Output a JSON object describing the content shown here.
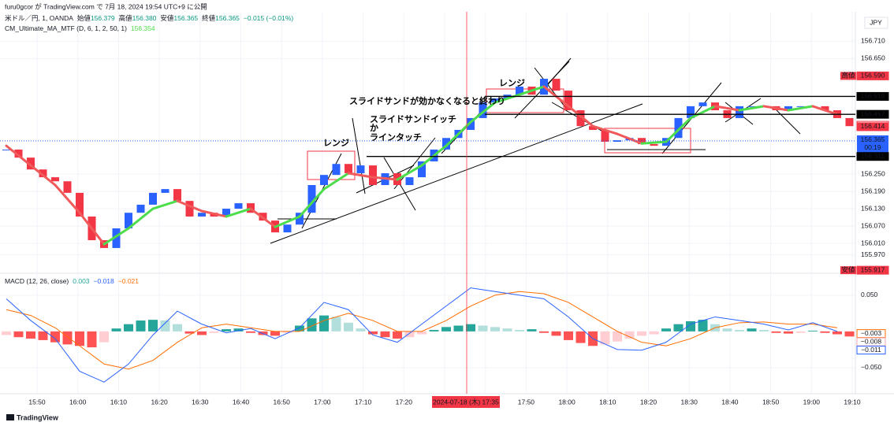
{
  "header": {
    "publisher": "furu0gcor が TradingView.com で 7月 18, 2024 19:54 UTC+9 に公開",
    "symbol": "米ドル／円, 1, OANDA",
    "open_label": "始値",
    "open": "156.379",
    "high_label": "高値",
    "high": "156.380",
    "low_label": "安値",
    "low": "156.365",
    "close_label": "終値",
    "close": "156.365",
    "change": "−0.015 (−0.01%)"
  },
  "indicator": {
    "name": "CM_Ultimate_MA_MTF (D, 6, 1, 2, 50, 1)",
    "value": "156.354"
  },
  "chart_data": [
    {
      "type": "candlestick",
      "currency": "JPY",
      "x_labels": [
        "15:50",
        "16:00",
        "16:10",
        "16:20",
        "16:30",
        "16:40",
        "16:50",
        "17:00",
        "17:10",
        "17:20",
        null,
        null,
        "17:50",
        "18:00",
        "18:10",
        "18:20",
        "18:30",
        "18:40",
        "18:50",
        "19:00",
        "19:10"
      ],
      "crosshair_label": "2024-07-18 (木)  17:35",
      "up_color": "#2962ff",
      "down_color": "#f23645",
      "closes": [
        156.335,
        156.307,
        156.266,
        156.239,
        156.225,
        156.185,
        156.103,
        156.021,
        155.994,
        156.062,
        156.116,
        156.144,
        156.185,
        156.198,
        156.157,
        156.103,
        156.116,
        156.103,
        156.13,
        156.149,
        156.116,
        156.089,
        156.048,
        156.075,
        156.116,
        156.212,
        156.247,
        156.285,
        156.253,
        156.28,
        156.212,
        156.253,
        156.212,
        156.239,
        156.294,
        156.335,
        156.375,
        156.403,
        156.444,
        156.498,
        156.512,
        156.525,
        156.553,
        156.525,
        156.58,
        156.539,
        156.471,
        156.416,
        156.403,
        156.362,
        156.367,
        156.375,
        156.354,
        156.348,
        156.375,
        156.444,
        156.485,
        156.498,
        156.471,
        156.444,
        156.485,
        156.485,
        156.485,
        156.471,
        156.485,
        156.485,
        156.485,
        156.471,
        156.444,
        156.416
      ],
      "ma": {
        "rise_color": "#4cdd4c",
        "fall_color": "#f05a5a",
        "values": [
          156.348,
          156.28,
          156.212,
          156.116,
          156.007,
          156.062,
          156.13,
          156.157,
          156.122,
          156.103,
          156.13,
          156.067,
          156.103,
          156.198,
          156.253,
          156.239,
          156.231,
          156.28,
          156.348,
          156.43,
          156.498,
          156.525,
          156.553,
          156.485,
          156.416,
          156.389,
          156.356,
          156.362,
          156.444,
          156.485,
          156.471,
          156.485,
          156.471,
          156.485,
          156.457
        ]
      },
      "ylim": [
        155.912,
        156.812
      ],
      "yticks": [
        {
          "value": 156.71,
          "label": "156.710"
        },
        {
          "value": 156.65,
          "label": "156.650"
        },
        {
          "value": 156.25,
          "label": "156.250"
        },
        {
          "value": 156.19,
          "label": "156.190"
        },
        {
          "value": 156.13,
          "label": "156.130"
        },
        {
          "value": 156.07,
          "label": "156.070"
        },
        {
          "value": 156.01,
          "label": "156.010"
        },
        {
          "value": 155.97,
          "label": "155.970"
        }
      ],
      "grid": true,
      "last_price": {
        "value": 156.365,
        "label": "156.365",
        "countdown": "00:19",
        "color": "#2962ff"
      },
      "price_labels": [
        {
          "tag": "高値",
          "value": 156.59,
          "label": "156.590",
          "color": "#f23645",
          "style": "fill"
        },
        {
          "value": 156.519,
          "label": "156.519",
          "color": "#000000",
          "style": "fill",
          "line": true
        },
        {
          "value": 156.457,
          "label": "156.457",
          "color": "#000000",
          "style": "fill",
          "line": true
        },
        {
          "value": 156.419,
          "label": "156.419",
          "color": "#f23645",
          "style": "outline"
        },
        {
          "value": 156.414,
          "label": "156.414",
          "color": "#f23645",
          "style": "fill"
        },
        {
          "value": 156.311,
          "label": "156.311",
          "color": "#000000",
          "style": "fill",
          "line": true
        },
        {
          "tag": "安値",
          "value": 155.917,
          "label": "155.917",
          "color": "#f23645",
          "style": "fill"
        }
      ],
      "annotations": [
        "レンジ",
        "スライドサンドイッチ",
        "か",
        "ラインタッチ",
        "スライドサンドが効かなくなると終わり",
        "レンジ"
      ]
    },
    {
      "type": "macd",
      "legend": "MACD (12, 26, close)",
      "legend_values": [
        {
          "text": "0.003",
          "color": "#26a69a"
        },
        {
          "text": "−0.018",
          "color": "#2962ff"
        },
        {
          "text": "−0.021",
          "color": "#ff6d00"
        }
      ],
      "histogram": [
        -0.005,
        -0.008,
        -0.01,
        -0.012,
        -0.015,
        -0.018,
        -0.02,
        -0.022,
        -0.015,
        0.004,
        0.01,
        0.015,
        0.016,
        0.015,
        0.01,
        -0.003,
        -0.005,
        -0.002,
        0.003,
        0.004,
        -0.002,
        -0.005,
        -0.006,
        -0.002,
        0.008,
        0.018,
        0.022,
        0.02,
        0.012,
        0.004,
        -0.004,
        -0.008,
        -0.01,
        -0.008,
        -0.004,
        0.002,
        0.006,
        0.008,
        0.01,
        0.008,
        0.006,
        0.004,
        0.002,
        0.003,
        -0.002,
        -0.006,
        -0.012,
        -0.016,
        -0.02,
        -0.018,
        -0.014,
        -0.01,
        -0.006,
        -0.004,
        0.004,
        0.01,
        0.014,
        0.016,
        0.01,
        0.004,
        0.002,
        0.004,
        0.002,
        -0.002,
        -0.003,
        -0.002,
        0.001,
        -0.002,
        -0.004,
        -0.007
      ],
      "macd": {
        "color": "#2962ff",
        "values": [
          0.045,
          0.015,
          -0.01,
          -0.055,
          -0.07,
          -0.045,
          -0.005,
          0.028,
          0.01,
          -0.002,
          0.004,
          -0.01,
          0.005,
          0.04,
          0.03,
          -0.005,
          -0.015,
          0.01,
          0.035,
          0.06,
          0.055,
          0.05,
          0.045,
          0.02,
          -0.01,
          -0.025,
          -0.026,
          -0.015,
          0.01,
          0.02,
          0.015,
          0.01,
          0.002,
          0.012,
          0.0
        ]
      },
      "signal": {
        "color": "#ff6d00",
        "values": [
          0.03,
          0.022,
          0.005,
          -0.02,
          -0.045,
          -0.052,
          -0.04,
          -0.015,
          0.005,
          0.01,
          0.005,
          0.0,
          0.0,
          0.015,
          0.025,
          0.015,
          0.0,
          0.0,
          0.015,
          0.035,
          0.05,
          0.055,
          0.052,
          0.04,
          0.02,
          0.0,
          -0.015,
          -0.02,
          -0.01,
          0.005,
          0.012,
          0.013,
          0.01,
          0.01,
          0.005
        ]
      },
      "ylim": [
        -0.086,
        0.077
      ],
      "yticks": [
        {
          "value": 0.05,
          "label": "0.050"
        },
        {
          "value": -0.05,
          "label": "−0.050"
        }
      ],
      "value_labels": [
        {
          "value": -0.003,
          "label": "−0.003",
          "color": "#ff6d00"
        },
        {
          "value": -0.008,
          "label": "−0.008",
          "color": "#f7a6b4"
        },
        {
          "value": -0.011,
          "label": "−0.011",
          "color": "#2962ff"
        }
      ]
    }
  ],
  "footer": "TradingView"
}
